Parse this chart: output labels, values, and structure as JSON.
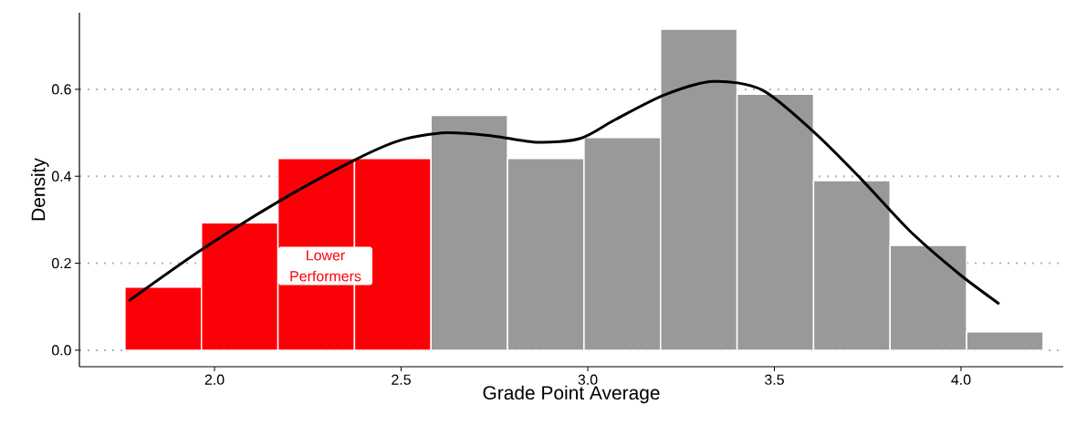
{
  "chart_data": {
    "type": "histogram",
    "xlabel": "Grade Point Average",
    "ylabel": "Density",
    "bins": [
      1.76,
      1.965,
      2.17,
      2.375,
      2.58,
      2.785,
      2.99,
      3.195,
      3.4,
      3.605,
      3.81,
      4.015,
      4.22
    ],
    "values": [
      0.145,
      0.293,
      0.441,
      0.441,
      0.54,
      0.441,
      0.489,
      0.738,
      0.589,
      0.39,
      0.241,
      0.042
    ],
    "colors": [
      "#fc0007",
      "#fc0007",
      "#fc0007",
      "#fc0007",
      "#999999",
      "#999999",
      "#999999",
      "#999999",
      "#999999",
      "#999999",
      "#999999",
      "#999999"
    ],
    "series": [
      {
        "type": "line",
        "color": "#000000",
        "x": [
          1.773,
          1.967,
          2.176,
          2.377,
          2.499,
          2.621,
          2.743,
          2.866,
          2.98,
          3.073,
          3.205,
          3.336,
          3.468,
          3.608,
          3.731,
          3.863,
          3.994,
          4.1
        ],
        "values": [
          0.115,
          0.232,
          0.344,
          0.438,
          0.483,
          0.5,
          0.493,
          0.478,
          0.487,
          0.53,
          0.587,
          0.618,
          0.598,
          0.5,
          0.395,
          0.274,
          0.176,
          0.108
        ]
      }
    ],
    "annotations": [
      "Lower Performers"
    ],
    "xlim": [
      1.638,
      4.274
    ],
    "ylim": [
      -0.038,
      0.776
    ],
    "xticks": [
      {
        "value": 2.0,
        "label": "2.0"
      },
      {
        "value": 2.5,
        "label": "2.5"
      },
      {
        "value": 3.0,
        "label": "3.0"
      },
      {
        "value": 3.5,
        "label": "3.5"
      },
      {
        "value": 4.0,
        "label": "4.0"
      }
    ],
    "yticks": [
      {
        "value": 0.0,
        "label": "0.0"
      },
      {
        "value": 0.2,
        "label": "0.2"
      },
      {
        "value": 0.4,
        "label": "0.4"
      },
      {
        "value": 0.6,
        "label": "0.6"
      }
    ],
    "grid": "y"
  }
}
